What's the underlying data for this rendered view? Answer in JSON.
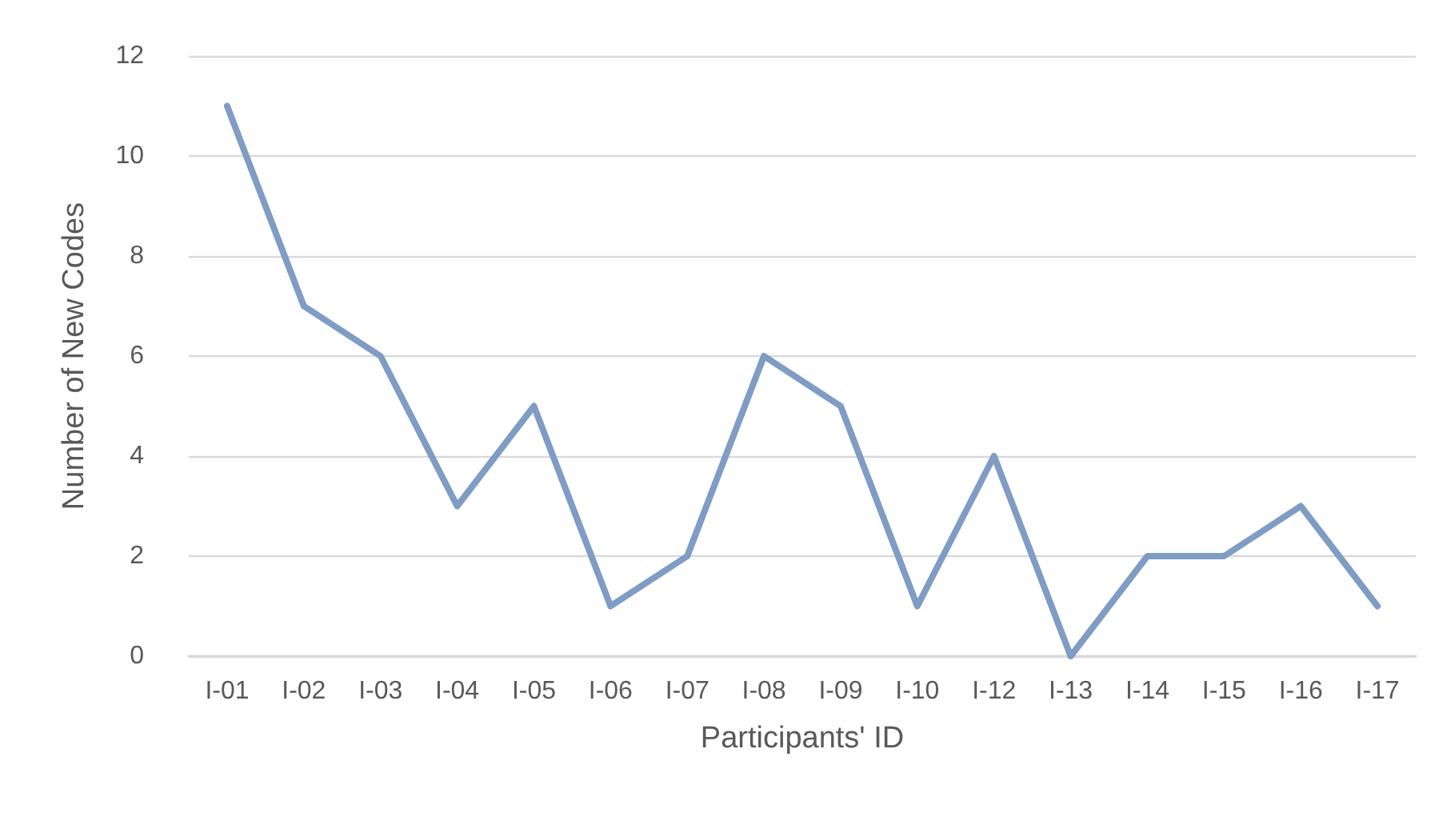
{
  "chart_data": {
    "type": "line",
    "xlabel": "Participants' ID",
    "ylabel": "Number of New Codes",
    "categories": [
      "I-01",
      "I-02",
      "I-03",
      "I-04",
      "I-05",
      "I-06",
      "I-07",
      "I-08",
      "I-09",
      "I-10",
      "I-12",
      "I-13",
      "I-14",
      "I-15",
      "I-16",
      "I-17"
    ],
    "series": [
      {
        "color": "#7f9cc4",
        "values": [
          11,
          7,
          6,
          3,
          5,
          1,
          2,
          6,
          5,
          1,
          4,
          0,
          2,
          2,
          3,
          1
        ]
      }
    ],
    "ylim": [
      0,
      12
    ],
    "yticks": [
      0,
      2,
      4,
      6,
      8,
      10,
      12
    ],
    "grid": "y",
    "marker": "none",
    "line_style": "solid"
  }
}
